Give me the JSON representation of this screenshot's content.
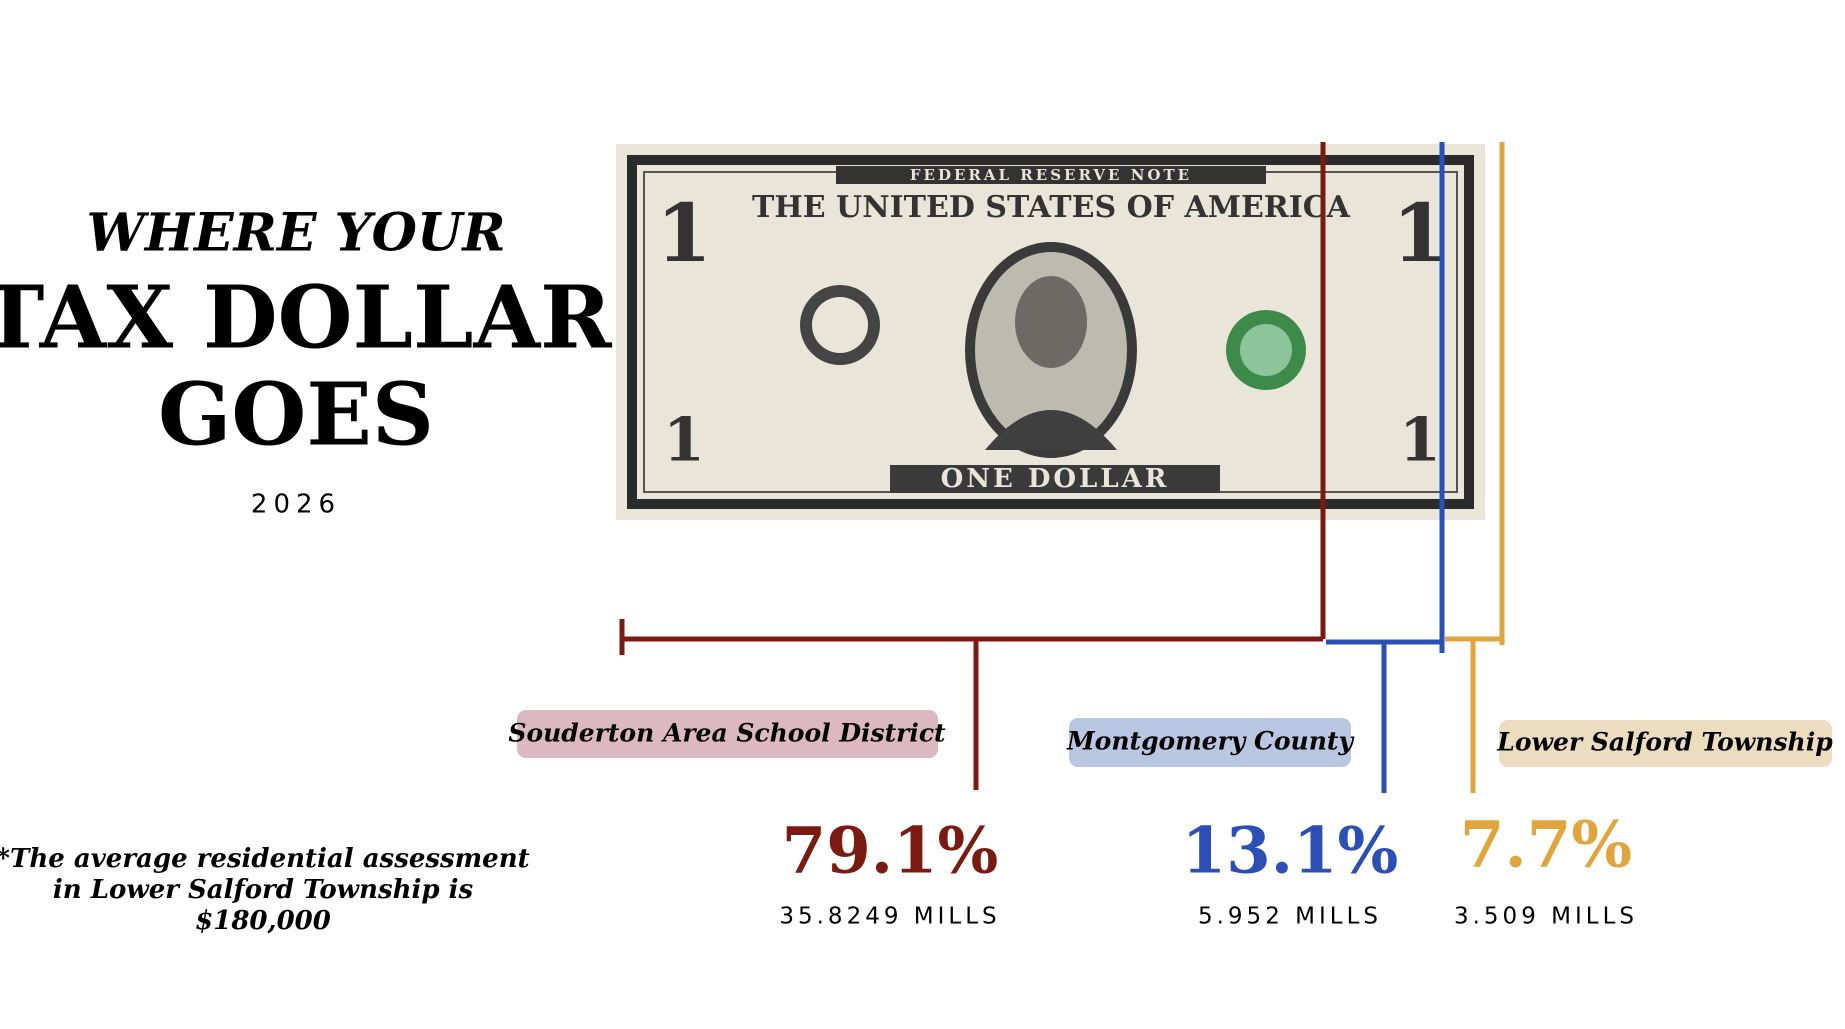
{
  "header": {
    "line1": "WHERE YOUR",
    "line2": "TAX DOLLAR",
    "line3": "GOES",
    "year": "2026"
  },
  "bill": {
    "top": "FEDERAL RESERVE NOTE",
    "name": "THE UNITED STATES OF AMERICA",
    "bottom": "ONE DOLLAR",
    "corner": "1"
  },
  "segments": [
    {
      "name": "Souderton Area School District",
      "percent": "79.1%",
      "mills": "35.8249 MILLS"
    },
    {
      "name": "Montgomery County",
      "percent": "13.1%",
      "mills": "5.952 MILLS"
    },
    {
      "name": "Lower Salford Township",
      "percent": "7.7%",
      "mills": "3.509 MILLS"
    }
  ],
  "note": [
    "*The average residential assessment",
    "in Lower Salford Township is",
    "$180,000"
  ]
}
